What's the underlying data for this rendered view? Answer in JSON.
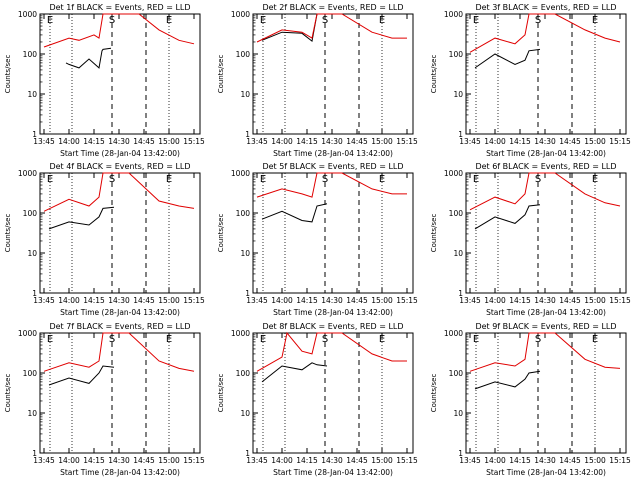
{
  "colors": {
    "events": "#000000",
    "lld": "#e00000",
    "axis": "#000000"
  },
  "chart_data": [
    {
      "type": "line",
      "title": "Det 1f BLACK = Events, RED = LLD",
      "ylabel": "Counts/sec",
      "xlabel": "Start Time (28-Jan-04 13:42:00)",
      "xticks": [
        "13:45",
        "14:00",
        "14:15",
        "14:30",
        "14:45",
        "15:00",
        "15:15"
      ],
      "yticks": [
        "1",
        "10",
        "100",
        "1000"
      ],
      "scale": "log",
      "ylim": [
        1,
        1000
      ],
      "markers": [
        "E",
        "S",
        "E"
      ],
      "series": [
        {
          "name": "BLACK = Events",
          "x": [
            13.97,
            14.0,
            14.1,
            14.2,
            14.3,
            14.33,
            14.34,
            14.42
          ],
          "y": [
            60,
            55,
            45,
            75,
            45,
            120,
            130,
            140
          ]
        },
        {
          "name": "RED = LLD",
          "x": [
            13.75,
            14.0,
            14.1,
            14.25,
            14.3,
            14.34,
            14.5,
            14.7,
            14.9,
            15.1,
            15.25
          ],
          "y": [
            150,
            250,
            220,
            300,
            250,
            1000,
            1000,
            1000,
            400,
            220,
            180
          ]
        }
      ]
    },
    {
      "type": "line",
      "title": "Det 2f BLACK = Events, RED = LLD",
      "ylabel": "Counts/sec",
      "xlabel": "Start Time (28-Jan-04 13:42:00)",
      "xticks": [
        "13:45",
        "14:00",
        "14:15",
        "14:30",
        "14:45",
        "15:00",
        "15:15"
      ],
      "yticks": [
        "1",
        "10",
        "100",
        "1000"
      ],
      "scale": "log",
      "ylim": [
        1,
        1000
      ],
      "markers": [
        "E",
        "S",
        "E"
      ],
      "series": [
        {
          "name": "BLACK = Events",
          "x": [
            13.8,
            14.0,
            14.2,
            14.3,
            14.35,
            14.45
          ],
          "y": [
            220,
            350,
            330,
            210,
            1000,
            1000
          ]
        },
        {
          "name": "RED = LLD",
          "x": [
            13.75,
            14.0,
            14.2,
            14.3,
            14.35,
            14.6,
            14.9,
            15.1,
            15.25
          ],
          "y": [
            200,
            400,
            350,
            250,
            1000,
            1000,
            350,
            250,
            250
          ]
        }
      ]
    },
    {
      "type": "line",
      "title": "Det 3f BLACK = Events, RED = LLD",
      "ylabel": "Counts/sec",
      "xlabel": "Start Time (28-Jan-04 13:42:00)",
      "xticks": [
        "13:45",
        "14:00",
        "14:15",
        "14:30",
        "14:45",
        "15:00",
        "15:15"
      ],
      "yticks": [
        "1",
        "10",
        "100",
        "1000"
      ],
      "scale": "log",
      "ylim": [
        1,
        1000
      ],
      "markers": [
        "E",
        "S",
        "E"
      ],
      "series": [
        {
          "name": "BLACK = Events",
          "x": [
            13.8,
            14.0,
            14.2,
            14.3,
            14.34,
            14.45
          ],
          "y": [
            45,
            100,
            55,
            70,
            120,
            130
          ]
        },
        {
          "name": "RED = LLD",
          "x": [
            13.75,
            14.0,
            14.2,
            14.3,
            14.34,
            14.6,
            14.9,
            15.1,
            15.25
          ],
          "y": [
            110,
            250,
            180,
            300,
            1000,
            1000,
            400,
            250,
            200
          ]
        }
      ]
    },
    {
      "type": "line",
      "title": "Det 4f BLACK = Events, RED = LLD",
      "ylabel": "Counts/sec",
      "xlabel": "Start Time (28-Jan-04 13:42:00)",
      "xticks": [
        "13:45",
        "14:00",
        "14:15",
        "14:30",
        "14:45",
        "15:00",
        "15:15"
      ],
      "yticks": [
        "1",
        "10",
        "100",
        "1000"
      ],
      "scale": "log",
      "ylim": [
        1,
        1000
      ],
      "markers": [
        "E",
        "S",
        "E"
      ],
      "series": [
        {
          "name": "BLACK = Events",
          "x": [
            13.8,
            14.0,
            14.2,
            14.3,
            14.34,
            14.45
          ],
          "y": [
            40,
            60,
            50,
            80,
            130,
            140
          ]
        },
        {
          "name": "RED = LLD",
          "x": [
            13.75,
            14.0,
            14.2,
            14.3,
            14.34,
            14.6,
            14.9,
            15.1,
            15.25
          ],
          "y": [
            110,
            220,
            150,
            250,
            1000,
            1000,
            200,
            150,
            130
          ]
        }
      ]
    },
    {
      "type": "line",
      "title": "Det 5f BLACK = Events, RED = LLD",
      "ylabel": "Counts/sec",
      "xlabel": "Start Time (28-Jan-04 13:42:00)",
      "xticks": [
        "13:45",
        "14:00",
        "14:15",
        "14:30",
        "14:45",
        "15:00",
        "15:15"
      ],
      "yticks": [
        "1",
        "10",
        "100",
        "1000"
      ],
      "scale": "log",
      "ylim": [
        1,
        1000
      ],
      "markers": [
        "E",
        "S",
        "E"
      ],
      "series": [
        {
          "name": "BLACK = Events",
          "x": [
            13.8,
            14.0,
            14.2,
            14.3,
            14.35,
            14.45
          ],
          "y": [
            70,
            110,
            65,
            60,
            150,
            170
          ]
        },
        {
          "name": "RED = LLD",
          "x": [
            13.75,
            14.0,
            14.2,
            14.3,
            14.35,
            14.6,
            14.9,
            15.1,
            15.25
          ],
          "y": [
            250,
            400,
            300,
            250,
            1000,
            1000,
            400,
            300,
            300
          ]
        }
      ]
    },
    {
      "type": "line",
      "title": "Det 6f BLACK = Events, RED = LLD",
      "ylabel": "Counts/sec",
      "xlabel": "Start Time (28-Jan-04 13:42:00)",
      "xticks": [
        "13:45",
        "14:00",
        "14:15",
        "14:30",
        "14:45",
        "15:00",
        "15:15"
      ],
      "yticks": [
        "1",
        "10",
        "100",
        "1000"
      ],
      "scale": "log",
      "ylim": [
        1,
        1000
      ],
      "markers": [
        "E",
        "S",
        "E"
      ],
      "series": [
        {
          "name": "BLACK = Events",
          "x": [
            13.8,
            14.0,
            14.2,
            14.3,
            14.34,
            14.45
          ],
          "y": [
            40,
            80,
            55,
            90,
            150,
            160
          ]
        },
        {
          "name": "RED = LLD",
          "x": [
            13.75,
            14.0,
            14.2,
            14.3,
            14.34,
            14.6,
            14.9,
            15.1,
            15.25
          ],
          "y": [
            120,
            250,
            170,
            300,
            1000,
            1000,
            300,
            180,
            150
          ]
        }
      ]
    },
    {
      "type": "line",
      "title": "Det 7f BLACK = Events, RED = LLD",
      "ylabel": "Counts/sec",
      "xlabel": "Start Time (28-Jan-04 13:42:00)",
      "xticks": [
        "13:45",
        "14:00",
        "14:15",
        "14:30",
        "14:45",
        "15:00",
        "15:15"
      ],
      "yticks": [
        "1",
        "10",
        "100",
        "1000"
      ],
      "scale": "log",
      "ylim": [
        1,
        1000
      ],
      "markers": [
        "E",
        "S",
        "E"
      ],
      "series": [
        {
          "name": "BLACK = Events",
          "x": [
            13.8,
            14.0,
            14.2,
            14.3,
            14.34,
            14.45
          ],
          "y": [
            50,
            75,
            55,
            100,
            150,
            140
          ]
        },
        {
          "name": "RED = LLD",
          "x": [
            13.75,
            14.0,
            14.2,
            14.3,
            14.34,
            14.6,
            14.9,
            15.1,
            15.25
          ],
          "y": [
            110,
            180,
            140,
            200,
            1000,
            1000,
            200,
            130,
            110
          ]
        }
      ]
    },
    {
      "type": "line",
      "title": "Det 8f BLACK = Events, RED = LLD",
      "ylabel": "Counts/sec",
      "xlabel": "Start Time (28-Jan-04 13:42:00)",
      "xticks": [
        "13:45",
        "14:00",
        "14:15",
        "14:30",
        "14:45",
        "15:00",
        "15:15"
      ],
      "yticks": [
        "1",
        "10",
        "100",
        "1000"
      ],
      "scale": "log",
      "ylim": [
        1,
        1000
      ],
      "markers": [
        "E",
        "S",
        "E"
      ],
      "series": [
        {
          "name": "BLACK = Events",
          "x": [
            13.8,
            14.0,
            14.2,
            14.3,
            14.35,
            14.45
          ],
          "y": [
            60,
            150,
            120,
            180,
            160,
            150
          ]
        },
        {
          "name": "RED = LLD",
          "x": [
            13.75,
            14.0,
            14.05,
            14.2,
            14.3,
            14.35,
            14.6,
            14.9,
            15.1,
            15.25
          ],
          "y": [
            110,
            250,
            1000,
            350,
            300,
            1000,
            1000,
            300,
            200,
            200
          ]
        }
      ]
    },
    {
      "type": "line",
      "title": "Det 9f BLACK = Events, RED = LLD",
      "ylabel": "Counts/sec",
      "xlabel": "Start Time (28-Jan-04 13:42:00)",
      "xticks": [
        "13:45",
        "14:00",
        "14:15",
        "14:30",
        "14:45",
        "15:00",
        "15:15"
      ],
      "yticks": [
        "1",
        "10",
        "100",
        "1000"
      ],
      "scale": "log",
      "ylim": [
        1,
        1000
      ],
      "markers": [
        "E",
        "S",
        "E"
      ],
      "series": [
        {
          "name": "BLACK = Events",
          "x": [
            13.8,
            14.0,
            14.2,
            14.3,
            14.34,
            14.45
          ],
          "y": [
            40,
            60,
            45,
            70,
            100,
            110
          ]
        },
        {
          "name": "RED = LLD",
          "x": [
            13.75,
            14.0,
            14.2,
            14.3,
            14.34,
            14.6,
            14.9,
            15.1,
            15.25
          ],
          "y": [
            110,
            180,
            150,
            220,
            1000,
            1000,
            220,
            140,
            130
          ]
        }
      ]
    }
  ]
}
